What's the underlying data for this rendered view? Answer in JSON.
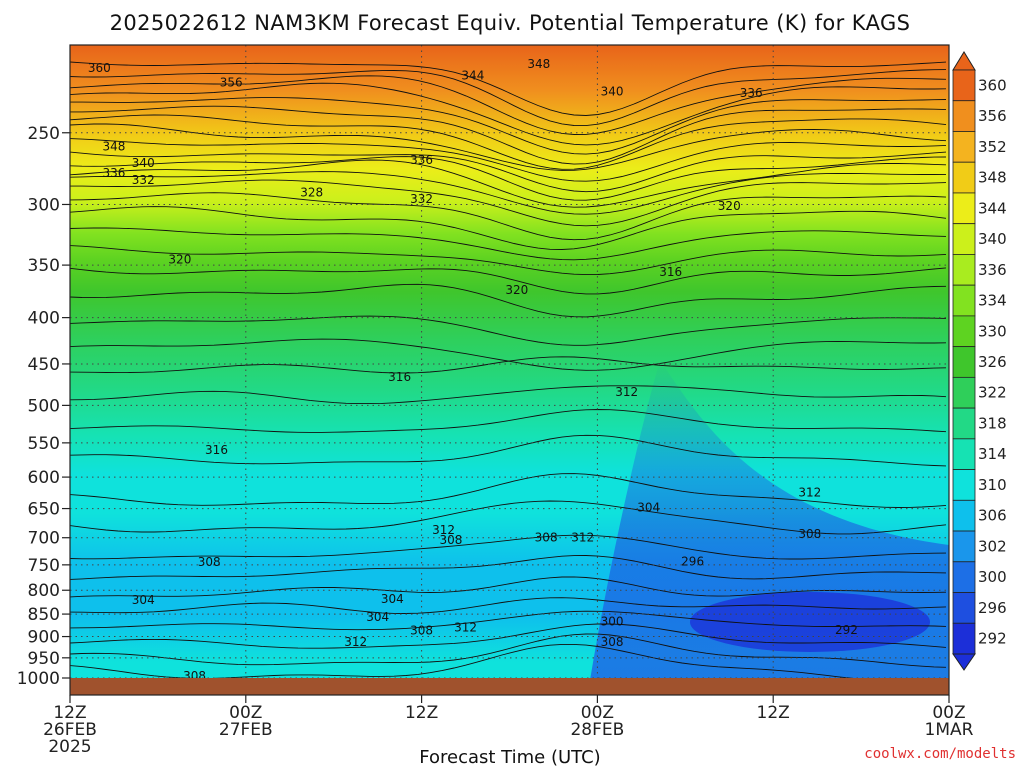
{
  "chart_data": {
    "type": "heatmap",
    "title": "2025022612 NAM3KM Forecast Equiv. Potential Temperature (K) for KAGS",
    "xlabel": "Forecast Time (UTC)",
    "ylabel": "",
    "y_scale": "log",
    "y_reversed": true,
    "ylim": [
      1000,
      200
    ],
    "y_ticks": [
      250,
      300,
      350,
      400,
      450,
      500,
      550,
      600,
      650,
      700,
      750,
      800,
      850,
      900,
      950,
      1000
    ],
    "x_ticks": [
      {
        "hour": 0,
        "line1": "12Z",
        "line2": "26FEB",
        "line3": "2025"
      },
      {
        "hour": 12,
        "line1": "00Z",
        "line2": "27FEB",
        "line3": ""
      },
      {
        "hour": 24,
        "line1": "12Z",
        "line2": "",
        "line3": ""
      },
      {
        "hour": 36,
        "line1": "00Z",
        "line2": "28FEB",
        "line3": ""
      },
      {
        "hour": 48,
        "line1": "12Z",
        "line2": "",
        "line3": ""
      },
      {
        "hour": 60,
        "line1": "00Z",
        "line2": "1MAR",
        "line3": ""
      }
    ],
    "grid": true,
    "colorbar": {
      "labels": [
        360,
        356,
        352,
        348,
        344,
        340,
        336,
        334,
        330,
        326,
        322,
        318,
        314,
        310,
        306,
        302,
        300,
        296,
        292
      ],
      "colors": [
        "#e8641a",
        "#f08f1e",
        "#f4b31f",
        "#f1cc17",
        "#eced19",
        "#ccf01b",
        "#a9ec1f",
        "#82e220",
        "#5ed321",
        "#3fc62c",
        "#2fcf5a",
        "#22d986",
        "#16e2b3",
        "#0fe2dc",
        "#0ec0ec",
        "#1a96eb",
        "#1d6fe6",
        "#1e4fe0",
        "#1c2fd8"
      ]
    },
    "surface_color": "#a0522d",
    "contour_interval_K": 2,
    "contour_labels": [
      {
        "hour": 2.0,
        "p": 212,
        "text": "360"
      },
      {
        "hour": 11.0,
        "p": 220,
        "text": "356"
      },
      {
        "hour": 27.5,
        "p": 216,
        "text": "344"
      },
      {
        "hour": 32.0,
        "p": 210,
        "text": "348"
      },
      {
        "hour": 37.0,
        "p": 225,
        "text": "340"
      },
      {
        "hour": 46.5,
        "p": 226,
        "text": "336"
      },
      {
        "hour": 3.0,
        "p": 259,
        "text": "348"
      },
      {
        "hour": 5.0,
        "p": 270,
        "text": "340"
      },
      {
        "hour": 3.0,
        "p": 277,
        "text": "336"
      },
      {
        "hour": 5.0,
        "p": 282,
        "text": "332"
      },
      {
        "hour": 16.5,
        "p": 291,
        "text": "328"
      },
      {
        "hour": 24.0,
        "p": 268,
        "text": "336"
      },
      {
        "hour": 24.0,
        "p": 296,
        "text": "332"
      },
      {
        "hour": 45.0,
        "p": 301,
        "text": "320"
      },
      {
        "hour": 7.5,
        "p": 345,
        "text": "320"
      },
      {
        "hour": 30.5,
        "p": 373,
        "text": "320"
      },
      {
        "hour": 41.0,
        "p": 356,
        "text": "316"
      },
      {
        "hour": 22.5,
        "p": 465,
        "text": "316"
      },
      {
        "hour": 38.0,
        "p": 483,
        "text": "312"
      },
      {
        "hour": 10.0,
        "p": 560,
        "text": "316"
      },
      {
        "hour": 39.5,
        "p": 648,
        "text": "304"
      },
      {
        "hour": 50.5,
        "p": 624,
        "text": "312"
      },
      {
        "hour": 50.5,
        "p": 693,
        "text": "308"
      },
      {
        "hour": 25.5,
        "p": 686,
        "text": "312"
      },
      {
        "hour": 26.0,
        "p": 704,
        "text": "308"
      },
      {
        "hour": 32.5,
        "p": 700,
        "text": "308"
      },
      {
        "hour": 35.0,
        "p": 700,
        "text": "312"
      },
      {
        "hour": 42.5,
        "p": 744,
        "text": "296"
      },
      {
        "hour": 9.5,
        "p": 745,
        "text": "308"
      },
      {
        "hour": 5.0,
        "p": 820,
        "text": "304"
      },
      {
        "hour": 22.0,
        "p": 818,
        "text": "304"
      },
      {
        "hour": 21.0,
        "p": 856,
        "text": "304"
      },
      {
        "hour": 24.0,
        "p": 886,
        "text": "308"
      },
      {
        "hour": 27.0,
        "p": 880,
        "text": "312"
      },
      {
        "hour": 19.5,
        "p": 912,
        "text": "312"
      },
      {
        "hour": 37.0,
        "p": 866,
        "text": "300"
      },
      {
        "hour": 37.0,
        "p": 912,
        "text": "308"
      },
      {
        "hour": 53.0,
        "p": 885,
        "text": "292"
      },
      {
        "hour": 8.5,
        "p": 995,
        "text": "308"
      }
    ]
  },
  "credit": "coolwx.com/modelts"
}
